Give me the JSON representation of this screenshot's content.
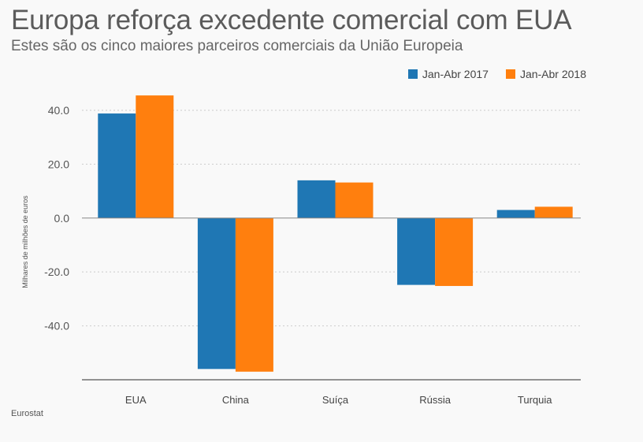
{
  "title": "Europa reforça excedente comercial com EUA",
  "subtitle": "Estes são os cinco maiores parceiros comerciais da União Europeia",
  "source": "Eurostat",
  "colors": {
    "series_2017": "#1f77b4",
    "series_2018": "#ff7f0e",
    "gridline": "#cccccc",
    "axis": "#555555"
  },
  "chart_data": {
    "type": "bar",
    "title": "Europa reforça excedente comercial com EUA",
    "subtitle": "Estes são os cinco maiores parceiros comerciais da União Europeia",
    "xlabel": "",
    "ylabel": "Milhares de milhões de euros",
    "categories": [
      "EUA",
      "China",
      "Suíça",
      "Rússia",
      "Turquia"
    ],
    "series": [
      {
        "name": "Jan-Abr 2017",
        "color": "#1f77b4",
        "values": [
          38.8,
          -56.0,
          14.0,
          -24.8,
          3.0
        ]
      },
      {
        "name": "Jan-Abr 2018",
        "color": "#ff7f0e",
        "values": [
          45.5,
          -57.0,
          13.2,
          -25.2,
          4.2
        ]
      }
    ],
    "yticks": [
      40.0,
      20.0,
      0.0,
      -20.0,
      -40.0
    ],
    "ytick_labels": [
      "40.0",
      "20.0",
      "0.0",
      "-20.0",
      "-40.0"
    ],
    "ylim": [
      -60,
      47
    ],
    "grid": true,
    "legend_position": "top-right"
  }
}
